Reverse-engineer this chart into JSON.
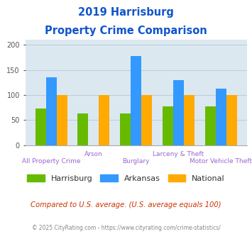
{
  "title_line1": "2019 Harrisburg",
  "title_line2": "Property Crime Comparison",
  "categories": [
    "All Property Crime",
    "Arson",
    "Burglary",
    "Larceny & Theft",
    "Motor Vehicle Theft"
  ],
  "series": {
    "Harrisburg": [
      73,
      63,
      63,
      77,
      77
    ],
    "Arkansas": [
      135,
      0,
      177,
      129,
      112
    ],
    "National": [
      100,
      100,
      100,
      100,
      100
    ]
  },
  "colors": {
    "Harrisburg": "#66bb00",
    "Arkansas": "#3399ff",
    "National": "#ffaa00"
  },
  "ylim": [
    0,
    210
  ],
  "yticks": [
    0,
    50,
    100,
    150,
    200
  ],
  "xlabel_color": "#9966cc",
  "title_color": "#1155cc",
  "plot_bg_color": "#dce8f0",
  "footer_text": "Compared to U.S. average. (U.S. average equals 100)",
  "footer_color": "#cc3300",
  "copyright_text": "© 2025 CityRating.com - https://www.cityrating.com/crime-statistics/",
  "copyright_color": "#888888",
  "grid_color": "#b0c8d8"
}
